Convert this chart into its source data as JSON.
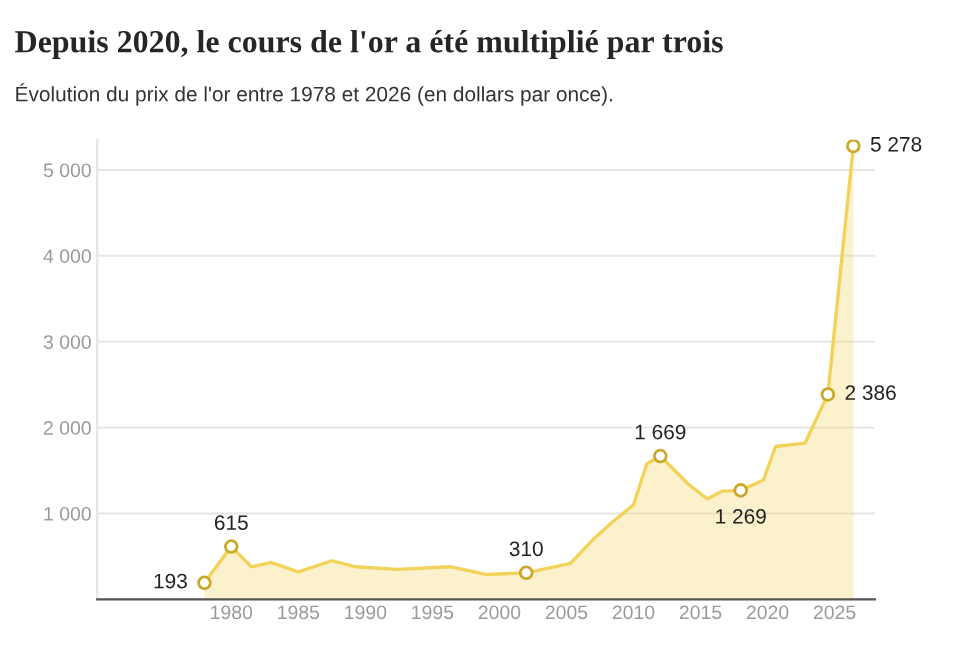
{
  "chart_data": {
    "type": "area",
    "title": "Depuis 2020, le cours de l'or a été multiplié par trois",
    "subtitle": "Évolution du prix de l'or entre 1978 et 2026 (en dollars par once).",
    "series": [
      {
        "color": "#f3d259",
        "x": [
          1978,
          1980,
          1981.5,
          1983,
          1985,
          1987.5,
          1989.3,
          1992.4,
          1996.4,
          1999,
          2002,
          2005.3,
          2007,
          2008.5,
          2010,
          2011,
          2012,
          2014.1,
          2015.5,
          2016.6,
          2018,
          2019.7,
          2020.6,
          2022.8,
          2024.5,
          2026.4
        ],
        "values": [
          193,
          615,
          380,
          430,
          320,
          450,
          380,
          350,
          380,
          290,
          310,
          420,
          700,
          910,
          1100,
          1580,
          1669,
          1340,
          1170,
          1260,
          1269,
          1390,
          1780,
          1820,
          2386,
          5278
        ]
      },
      {
        "type": "scatter",
        "marker": "circle",
        "color": "#c9a82a",
        "x": [
          1978,
          1980,
          2002,
          2012,
          2018,
          2024.5,
          2026.4
        ],
        "values": [
          193,
          615,
          310,
          1669,
          1269,
          2386,
          5278
        ],
        "value_labels": [
          "193",
          "615",
          "310",
          "1 669",
          "1 269",
          "2 386",
          "5 278"
        ]
      }
    ],
    "xlim": [
      1970,
      2028
    ],
    "ylim": [
      0,
      5350
    ],
    "xticks": [
      1980,
      1985,
      1990,
      1995,
      2000,
      2005,
      2010,
      2015,
      2020,
      2025
    ],
    "yticks": [
      {
        "value": 0,
        "label": null
      },
      {
        "value": 1000,
        "label": "1 000"
      },
      {
        "value": 2000,
        "label": "2 000"
      },
      {
        "value": 3000,
        "label": "3 000"
      },
      {
        "value": 4000,
        "label": "4 000"
      },
      {
        "value": 5000,
        "label": "5 000"
      }
    ],
    "grid": "y"
  }
}
